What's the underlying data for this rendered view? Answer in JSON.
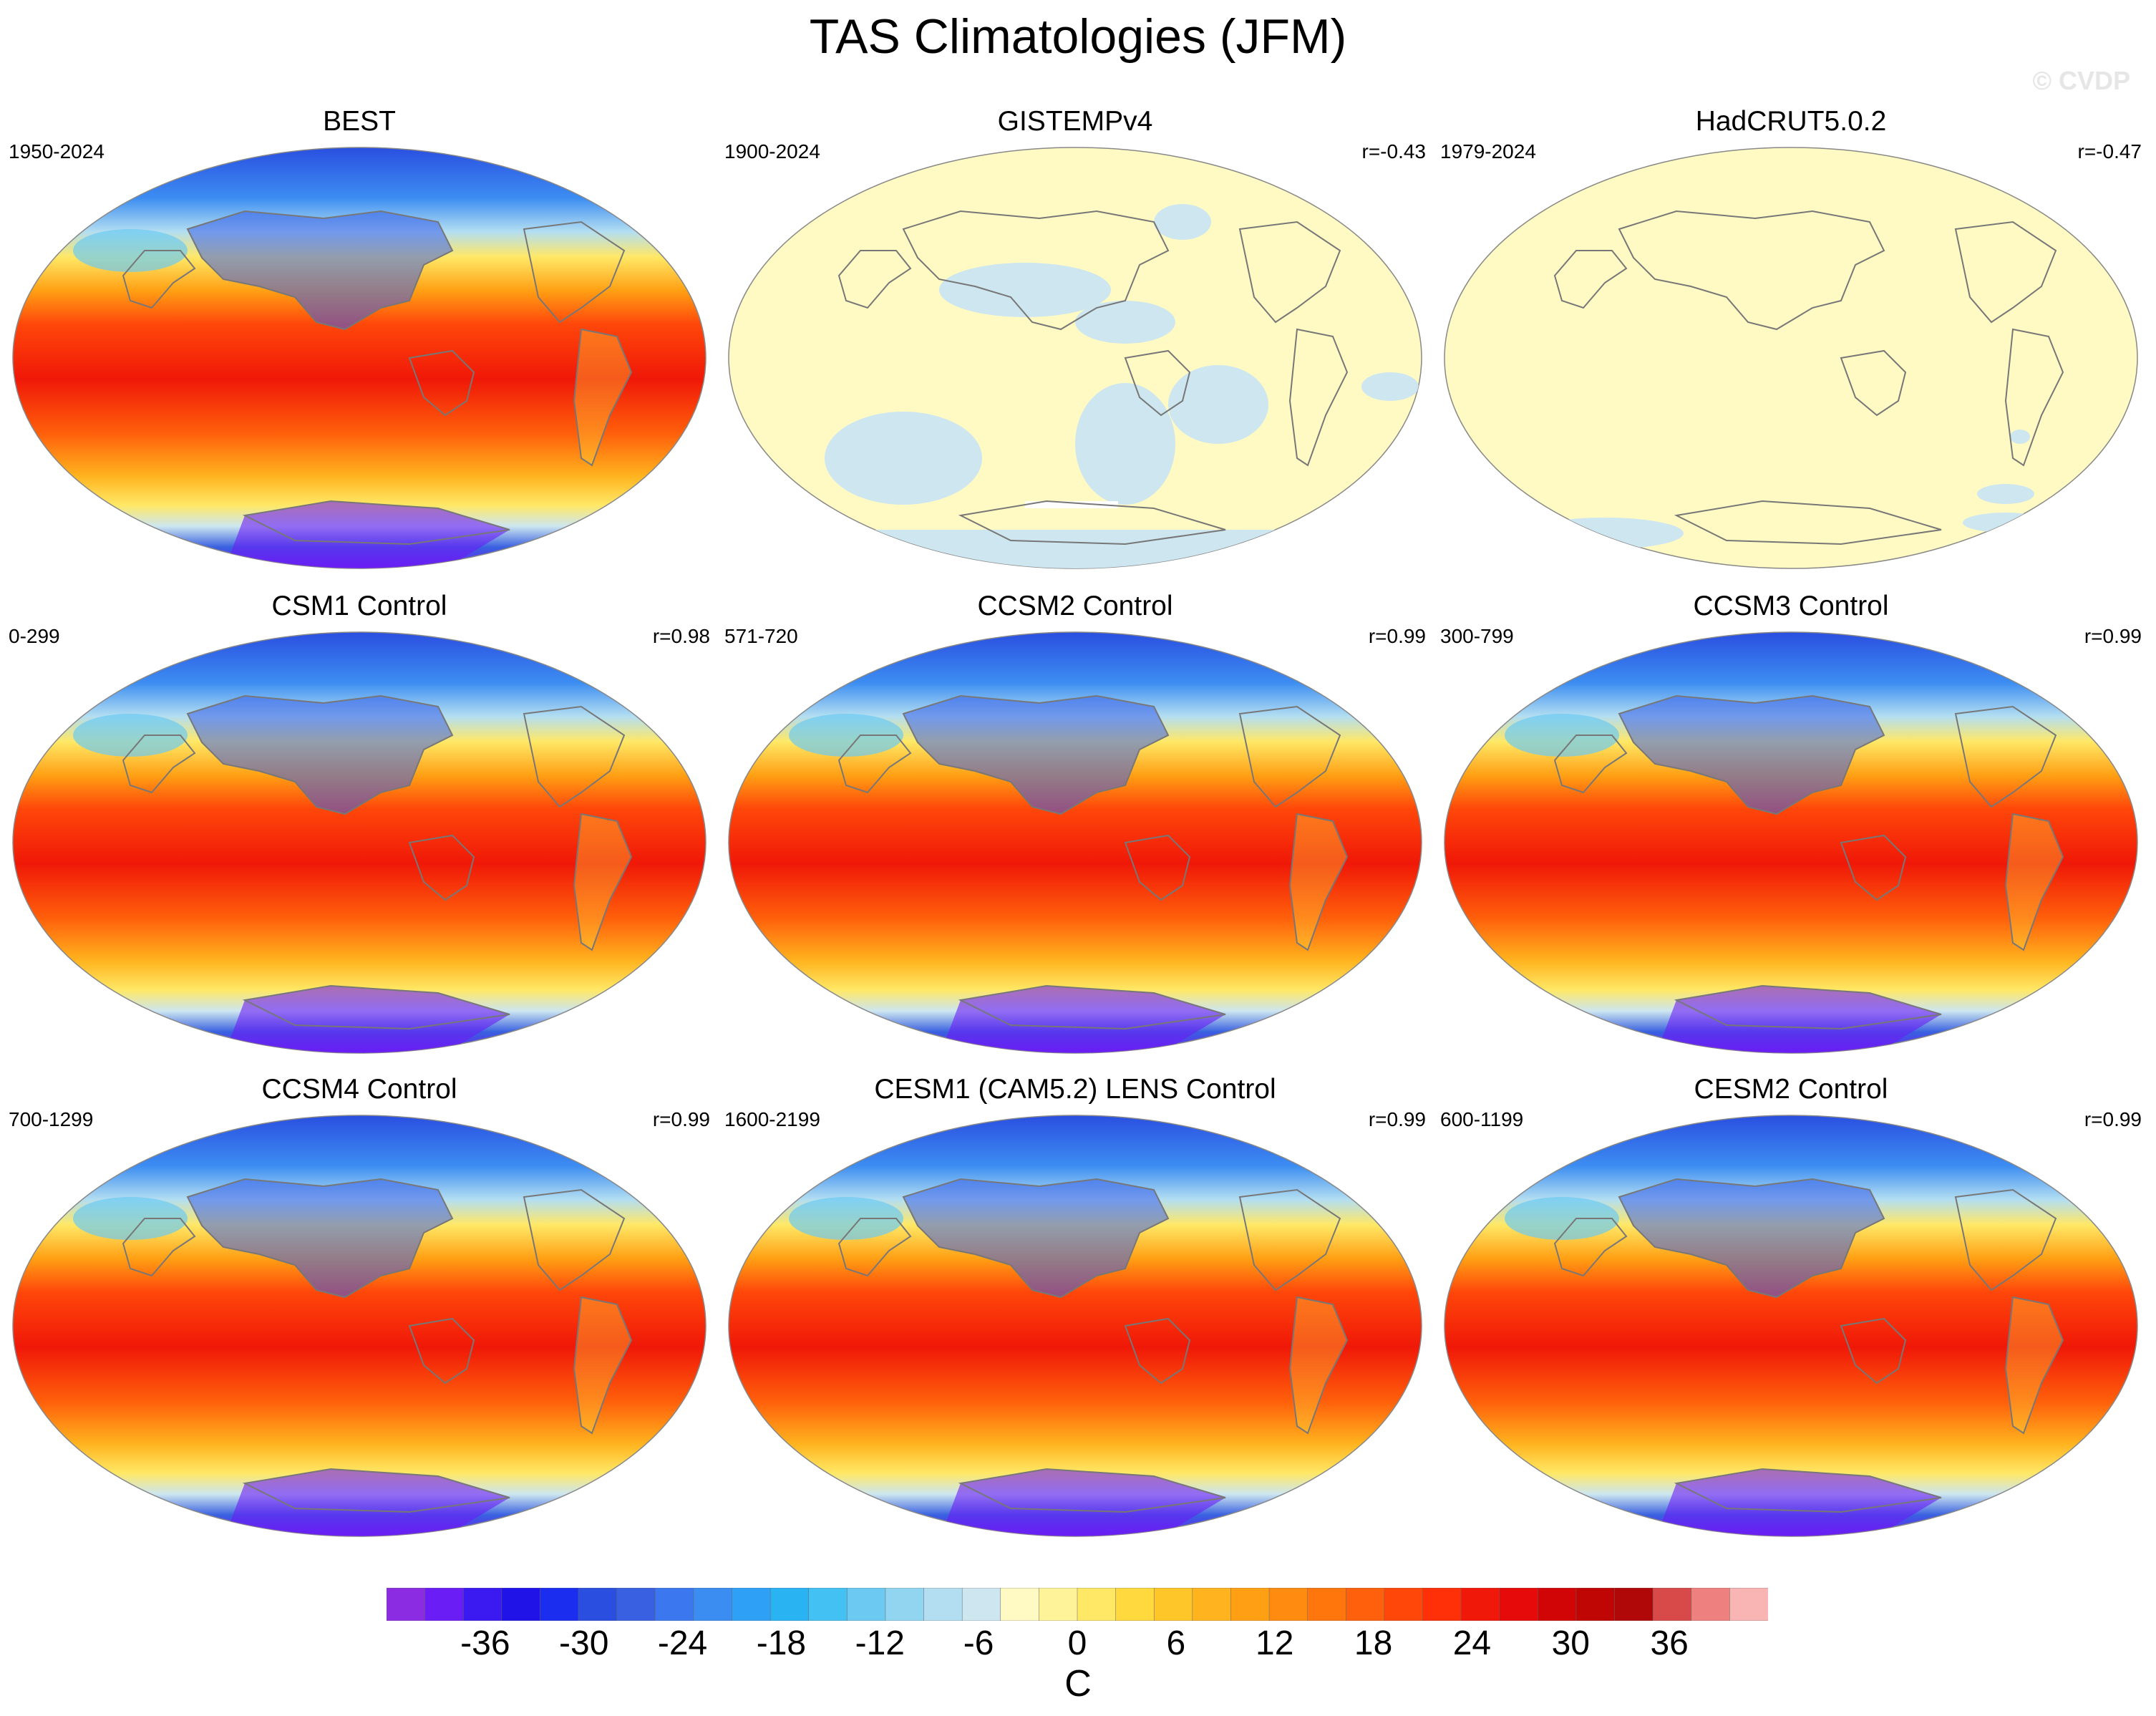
{
  "title": "TAS Climatologies (JFM)",
  "watermark": "© CVDP",
  "panels": [
    {
      "name": "BEST",
      "period": "1950-2024",
      "corr": "",
      "style": "obs"
    },
    {
      "name": "GISTEMPv4",
      "period": "1900-2024",
      "corr": "r=-0.43",
      "style": "anom"
    },
    {
      "name": "HadCRUT5.0.2",
      "period": "1979-2024",
      "corr": "r=-0.47",
      "style": "flat"
    },
    {
      "name": "CSM1 Control",
      "period": "0-299",
      "corr": "r=0.98",
      "style": "model"
    },
    {
      "name": "CCSM2 Control",
      "period": "571-720",
      "corr": "r=0.99",
      "style": "model"
    },
    {
      "name": "CCSM3 Control",
      "period": "300-799",
      "corr": "r=0.99",
      "style": "model"
    },
    {
      "name": "CCSM4 Control",
      "period": "700-1299",
      "corr": "r=0.99",
      "style": "model"
    },
    {
      "name": "CESM1 (CAM5.2) LENS Control",
      "period": "1600-2199",
      "corr": "r=0.99",
      "style": "model"
    },
    {
      "name": "CESM2 Control",
      "period": "600-1199",
      "corr": "r=0.99",
      "style": "model"
    }
  ],
  "colorbar": {
    "units": "C",
    "tick_labels": [
      "-36",
      "-30",
      "-24",
      "-18",
      "-12",
      "-6",
      "0",
      "6",
      "12",
      "18",
      "24",
      "30",
      "36"
    ],
    "min": -42,
    "max": 42,
    "step": 2,
    "colors": [
      "#8b2be2",
      "#6a1df5",
      "#3a1af0",
      "#1f13e8",
      "#1b2ef0",
      "#2a4fe0",
      "#3960e0",
      "#3b78ef",
      "#3c8df2",
      "#2ea1f6",
      "#29b3f3",
      "#44c1f3",
      "#6ccaf2",
      "#91d5f0",
      "#b3def2",
      "#cde6f0",
      "#fffac3",
      "#fff39a",
      "#ffe866",
      "#ffd93e",
      "#ffc62a",
      "#ffb31e",
      "#ffa014",
      "#ff8c10",
      "#ff760d",
      "#ff600b",
      "#ff470a",
      "#ff2f08",
      "#f01808",
      "#e60a0a",
      "#d10505",
      "#c00505",
      "#b00808",
      "#d84a4a",
      "#ee8080",
      "#f9b4b4"
    ]
  }
}
